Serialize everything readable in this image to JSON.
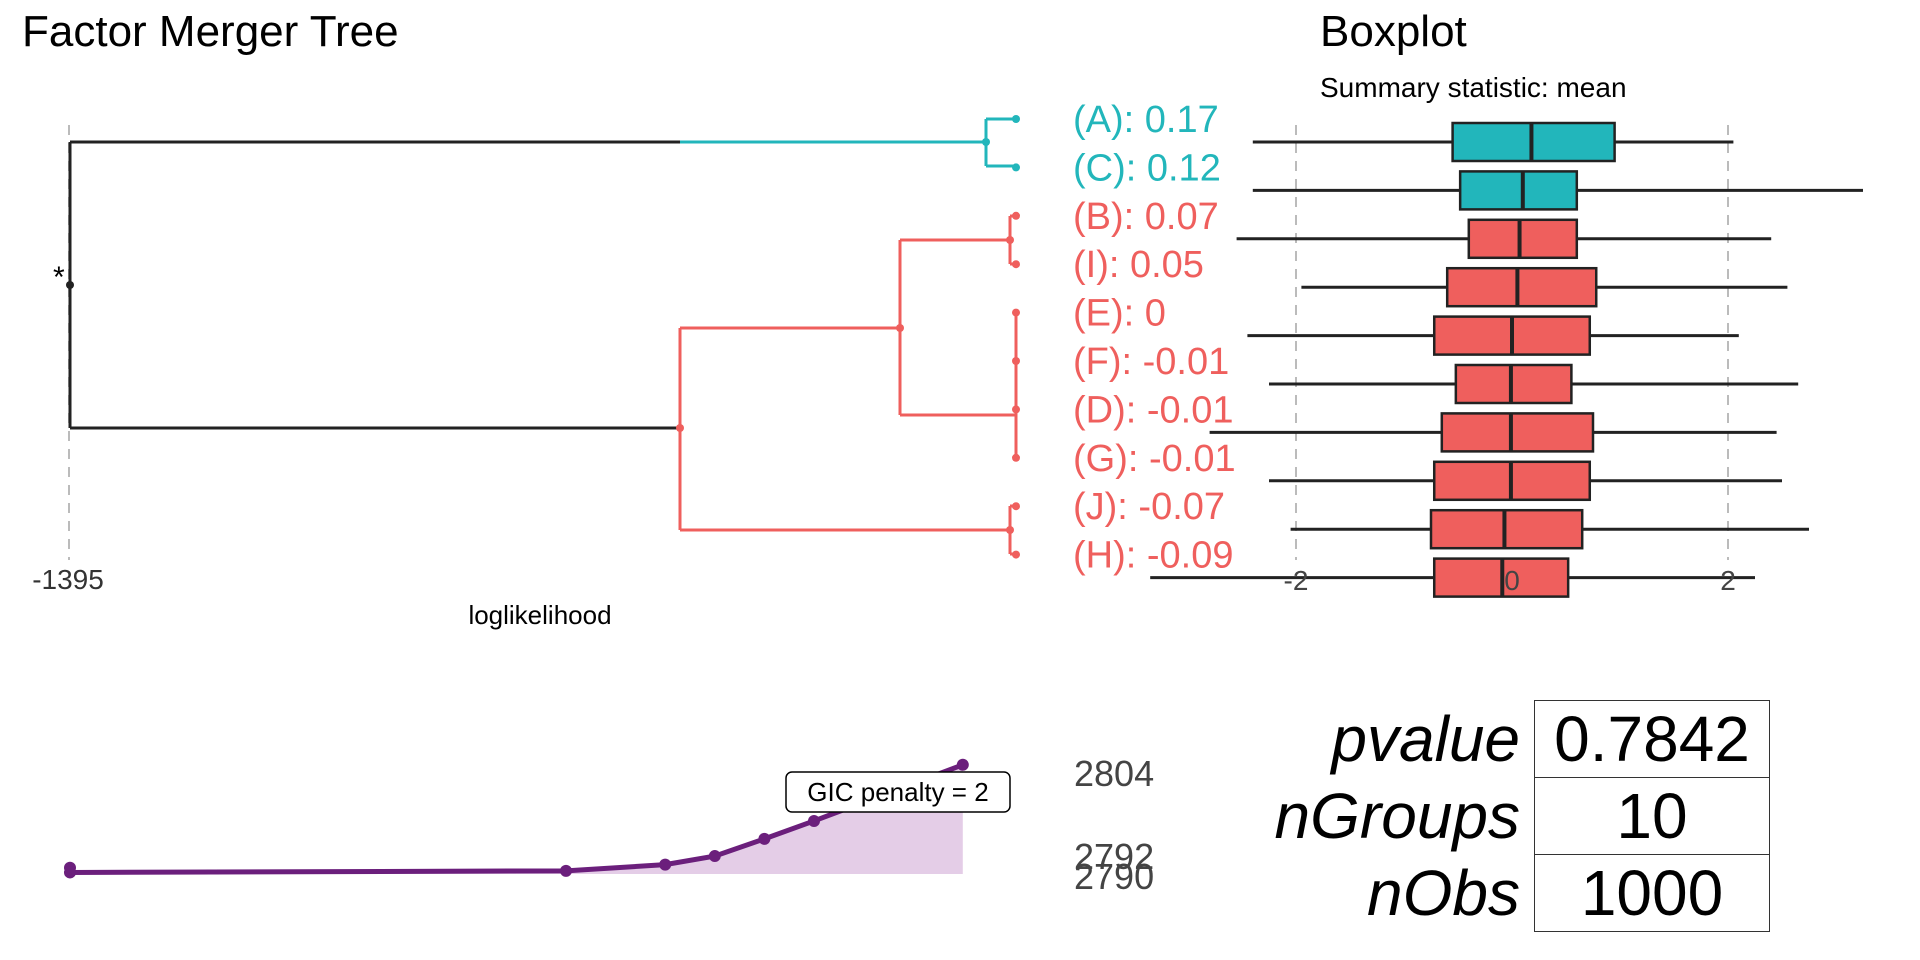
{
  "colors": {
    "teal": "#22b6bb",
    "salmon": "#ef5f5d",
    "purple": "#6b1f7c",
    "purple_fill": "#e4cde7",
    "dark": "#222222",
    "grid": "#bbbbbb"
  },
  "chart_data": [
    {
      "type": "dendrogram",
      "title": "Factor Merger Tree",
      "xlabel": "loglikelihood",
      "x_tick_labels": [
        "-1395"
      ],
      "leaves": [
        {
          "name": "A",
          "label": "(A): 0.17",
          "cluster": "teal"
        },
        {
          "name": "C",
          "label": "(C): 0.12",
          "cluster": "teal"
        },
        {
          "name": "B",
          "label": "(B): 0.07",
          "cluster": "salmon"
        },
        {
          "name": "I",
          "label": "(I): 0.05",
          "cluster": "salmon"
        },
        {
          "name": "E",
          "label": "(E): 0",
          "cluster": "salmon"
        },
        {
          "name": "F",
          "label": "(F): -0.01",
          "cluster": "salmon"
        },
        {
          "name": "D",
          "label": "(D): -0.01",
          "cluster": "salmon"
        },
        {
          "name": "G",
          "label": "(G): -0.01",
          "cluster": "salmon"
        },
        {
          "name": "J",
          "label": "(J): -0.07",
          "cluster": "salmon"
        },
        {
          "name": "H",
          "label": "(H): -0.09",
          "cluster": "salmon"
        }
      ],
      "root_marker": "*"
    },
    {
      "type": "boxplot",
      "title": "Boxplot",
      "subtitle": "Summary statistic: mean",
      "x_tick_labels": [
        "-2",
        "0",
        "2"
      ],
      "xlim": [
        -3.3,
        3.7
      ],
      "boxes": [
        {
          "group": "A",
          "whisker_low": -2.4,
          "q1": -0.55,
          "median": 0.18,
          "q3": 0.95,
          "whisker_high": 2.05,
          "cluster": "teal"
        },
        {
          "group": "C",
          "whisker_low": -2.4,
          "q1": -0.48,
          "median": 0.1,
          "q3": 0.6,
          "whisker_high": 3.25,
          "cluster": "teal"
        },
        {
          "group": "B",
          "whisker_low": -2.55,
          "q1": -0.4,
          "median": 0.07,
          "q3": 0.6,
          "whisker_high": 2.4,
          "cluster": "salmon"
        },
        {
          "group": "I",
          "whisker_low": -1.95,
          "q1": -0.6,
          "median": 0.05,
          "q3": 0.78,
          "whisker_high": 2.55,
          "cluster": "salmon"
        },
        {
          "group": "E",
          "whisker_low": -2.45,
          "q1": -0.72,
          "median": 0.0,
          "q3": 0.72,
          "whisker_high": 2.1,
          "cluster": "salmon"
        },
        {
          "group": "F",
          "whisker_low": -2.25,
          "q1": -0.52,
          "median": -0.01,
          "q3": 0.55,
          "whisker_high": 2.65,
          "cluster": "salmon"
        },
        {
          "group": "D",
          "whisker_low": -2.8,
          "q1": -0.65,
          "median": -0.01,
          "q3": 0.75,
          "whisker_high": 2.45,
          "cluster": "salmon"
        },
        {
          "group": "G",
          "whisker_low": -2.25,
          "q1": -0.72,
          "median": -0.01,
          "q3": 0.72,
          "whisker_high": 2.5,
          "cluster": "salmon"
        },
        {
          "group": "J",
          "whisker_low": -2.05,
          "q1": -0.75,
          "median": -0.07,
          "q3": 0.65,
          "whisker_high": 2.75,
          "cluster": "salmon"
        },
        {
          "group": "H",
          "whisker_low": -3.35,
          "q1": -0.72,
          "median": -0.09,
          "q3": 0.52,
          "whisker_high": 2.25,
          "cluster": "salmon"
        }
      ]
    },
    {
      "type": "area",
      "y_tick_labels": [
        "2804",
        "2792",
        "2790"
      ],
      "annotation": "GIC penalty = 2",
      "x": [
        -1395,
        -1395,
        -1385,
        -1383,
        -1382,
        -1381,
        -1380,
        -1379,
        -1378,
        -1377
      ],
      "y": [
        2790.8,
        2790.2,
        2790.4,
        2791.2,
        2792.3,
        2794.5,
        2796.8,
        2799.2,
        2801.6,
        2804
      ]
    }
  ],
  "stats_table": [
    {
      "name": "pvalue",
      "value": "0.7842"
    },
    {
      "name": "nGroups",
      "value": "10"
    },
    {
      "name": "nObs",
      "value": "1000"
    }
  ]
}
